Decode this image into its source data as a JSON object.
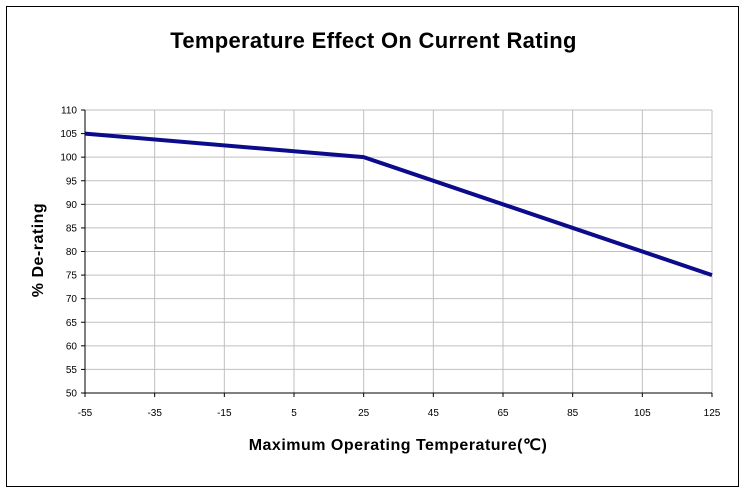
{
  "chart_data": {
    "type": "line",
    "title": "Temperature Effect On Current Rating",
    "xlabel": "Maximum Operating Temperature(℃)",
    "ylabel": "% De-rating",
    "xlim": [
      -55,
      125
    ],
    "ylim": [
      50,
      110
    ],
    "x_ticks": [
      -55,
      -35,
      -15,
      5,
      25,
      45,
      65,
      85,
      105,
      125
    ],
    "y_ticks": [
      50,
      55,
      60,
      65,
      70,
      75,
      80,
      85,
      90,
      95,
      100,
      105,
      110
    ],
    "grid": true,
    "series": [
      {
        "x": [
          -55,
          25,
          125
        ],
        "y": [
          105,
          100,
          75
        ],
        "color": "#0b0b8c"
      }
    ]
  }
}
